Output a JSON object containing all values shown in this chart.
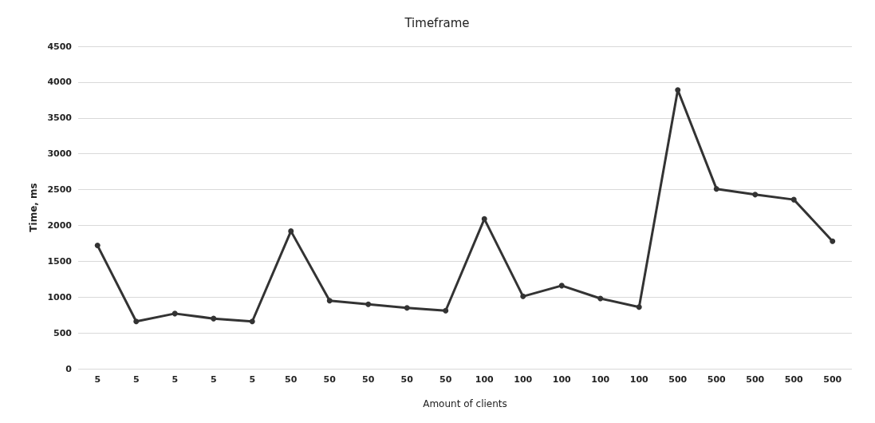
{
  "chart_data": {
    "type": "line",
    "title": "Timeframe",
    "xlabel": "Amount of clients",
    "ylabel": "Time, ms",
    "categories": [
      "5",
      "5",
      "5",
      "5",
      "5",
      "50",
      "50",
      "50",
      "50",
      "50",
      "100",
      "100",
      "100",
      "100",
      "100",
      "500",
      "500",
      "500",
      "500",
      "500"
    ],
    "series": [
      {
        "color": "#333333",
        "values": [
          1720,
          660,
          770,
          700,
          660,
          1920,
          950,
          900,
          850,
          810,
          2090,
          1010,
          1160,
          980,
          860,
          3890,
          2510,
          2430,
          2360,
          1780
        ]
      }
    ],
    "ylim": [
      0,
      4500
    ],
    "yticks": [
      0,
      500,
      1000,
      1500,
      2000,
      2500,
      3000,
      3500,
      4000,
      4500
    ],
    "grid": "y",
    "marker": "circle",
    "line_style": "solid"
  }
}
